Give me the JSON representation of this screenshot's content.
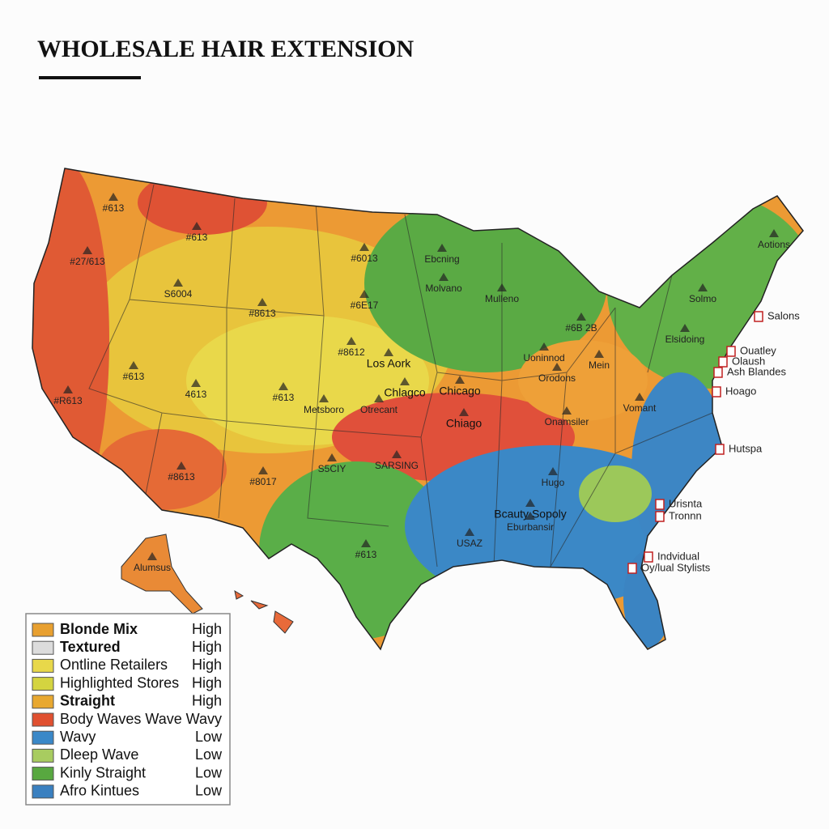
{
  "header": {
    "title": "WHOLESALE HAIR EXTENSION"
  },
  "map": {
    "labels": [
      "#613",
      "#613",
      "#27/613",
      "S6004",
      "#8613",
      "#6013",
      "#6E17",
      "#8612",
      "Los Aork",
      "#613",
      "4613",
      "#613",
      "Metsboro",
      "Otrecant",
      "#R613",
      "#8613",
      "#8017",
      "S5CIY",
      "SARSING",
      "Chlagco",
      "Chicago",
      "Chiago",
      "Ebcning",
      "Molvano",
      "Mulleno",
      "#6B 2B",
      "Elsidoing",
      "Solmo",
      "Aotions",
      "Uoninnod",
      "Orodons",
      "Mein",
      "Onamsiler",
      "Vomant",
      "Hugo",
      "Bcauty Sopoly",
      "Eburbansir",
      "#613",
      "USAZ",
      "Alumsus",
      "Salons",
      "Ouatley",
      "Olaush",
      "Ash Blandes",
      "Hoago",
      "Hutspa",
      "Urisnta",
      "Tronnn",
      "Indvidual",
      "Oy/lual Stylists"
    ]
  },
  "legend": {
    "items": [
      {
        "name": "Blonde Mix",
        "level": "High",
        "color": "#e8a030",
        "bold": true
      },
      {
        "name": "Textured",
        "level": "High",
        "color": "#dcdcdc",
        "bold": true
      },
      {
        "name": "Ontline Retailers",
        "level": "High",
        "color": "#e8d84a",
        "bold": false
      },
      {
        "name": "Highlighted Stores",
        "level": "High",
        "color": "#d4d440",
        "bold": false
      },
      {
        "name": "Straight",
        "level": "High",
        "color": "#e8a830",
        "bold": true
      },
      {
        "name": "Body Waves Wave",
        "level": "Wavy",
        "color": "#e05030",
        "bold": false
      },
      {
        "name": "Wavy",
        "level": "Low",
        "color": "#3a88c8",
        "bold": false
      },
      {
        "name": "Dleep Wave",
        "level": "Low",
        "color": "#a8cc60",
        "bold": false
      },
      {
        "name": "Kinly Straight",
        "level": "Low",
        "color": "#58a840",
        "bold": false
      },
      {
        "name": "Afro Kintues",
        "level": "Low",
        "color": "#3a80c0",
        "bold": false
      }
    ]
  }
}
